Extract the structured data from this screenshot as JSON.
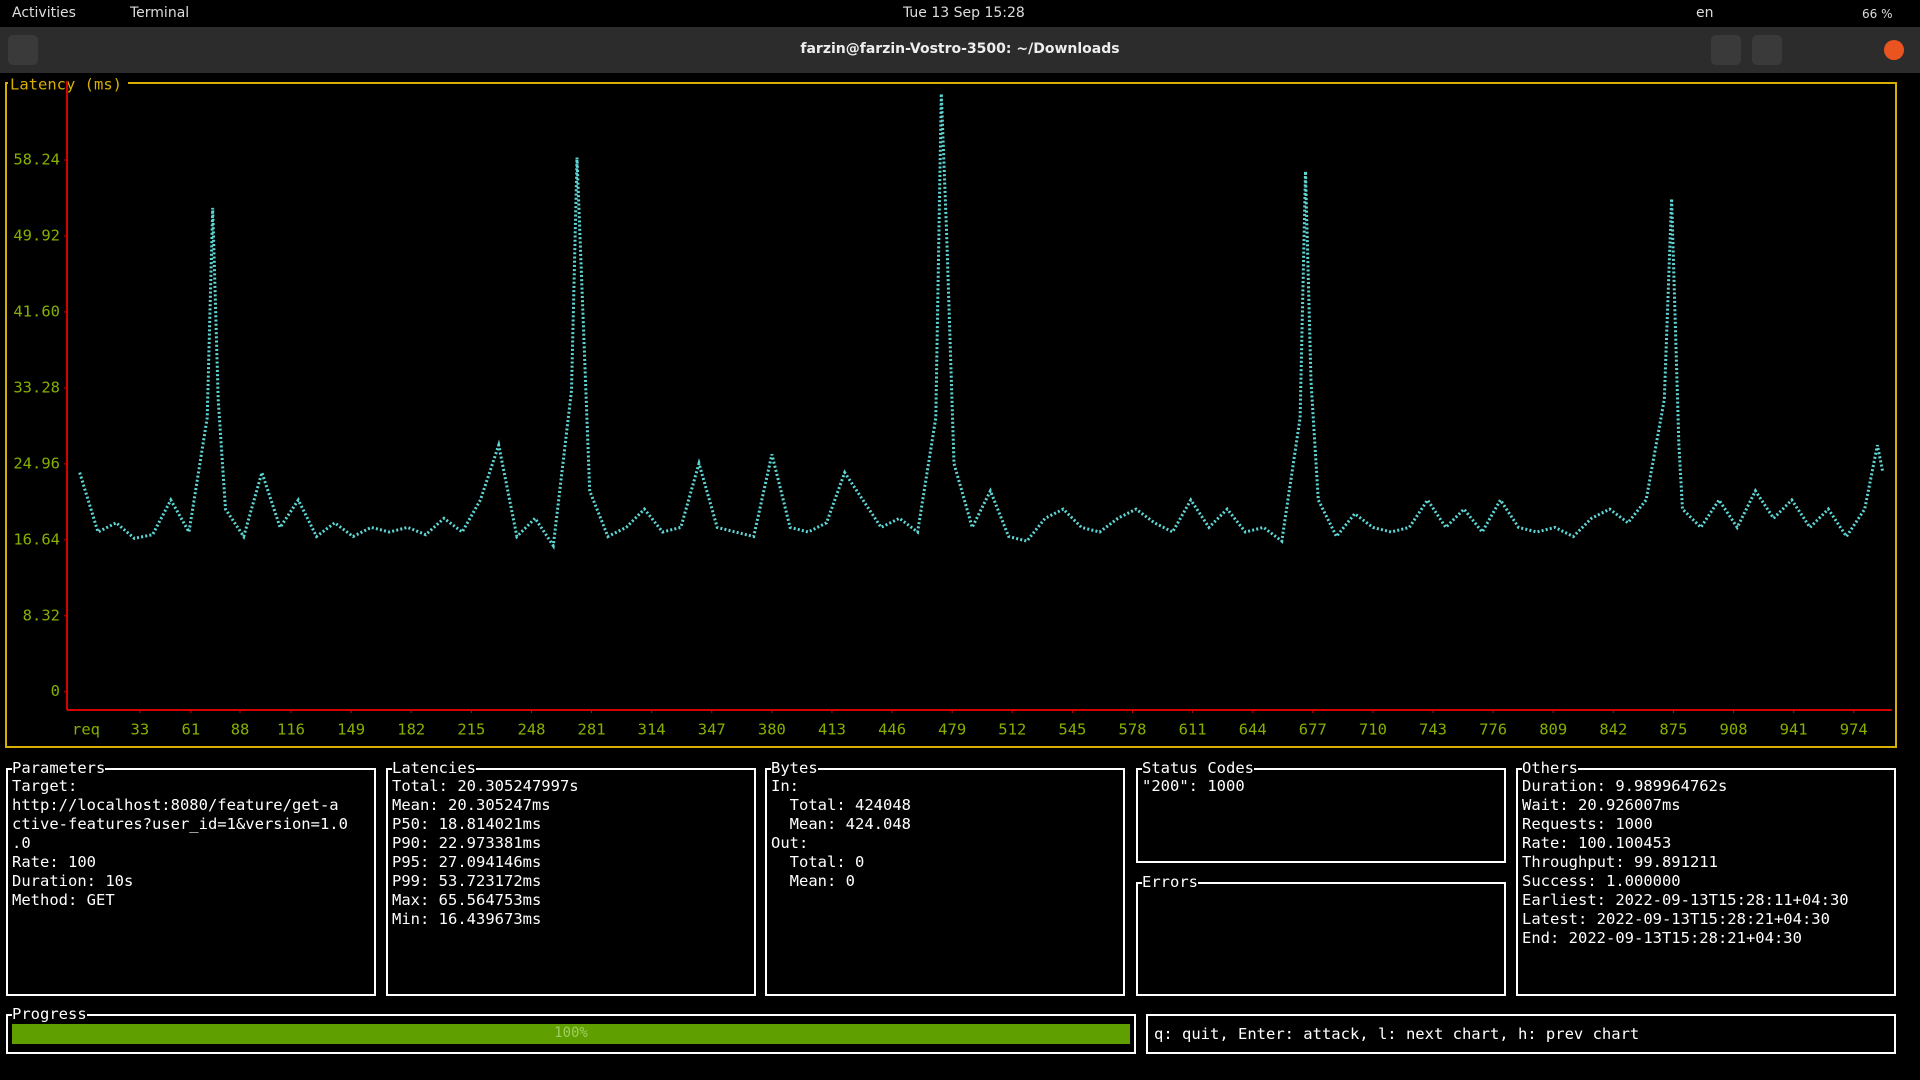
{
  "top_bar": {
    "activities": "Activities",
    "app": "Terminal",
    "clock": "Tue 13 Sep  15:28",
    "language": "en",
    "battery": "66 %"
  },
  "window": {
    "title": "farzin@farzin-Vostro-3500: ~/Downloads"
  },
  "chart_data": {
    "type": "line",
    "title": "Latency (ms)",
    "x_label": "req",
    "color": "#5fd7d7",
    "x": [
      0,
      10,
      20,
      30,
      40,
      50,
      60,
      70,
      73,
      76,
      80,
      90,
      100,
      110,
      120,
      130,
      140,
      150,
      160,
      170,
      180,
      190,
      200,
      210,
      220,
      230,
      240,
      250,
      260,
      270,
      273,
      276,
      280,
      290,
      300,
      310,
      320,
      330,
      340,
      350,
      360,
      370,
      380,
      390,
      400,
      410,
      420,
      430,
      440,
      450,
      460,
      470,
      473,
      476,
      480,
      490,
      500,
      510,
      520,
      530,
      540,
      550,
      560,
      570,
      580,
      590,
      600,
      610,
      620,
      630,
      640,
      650,
      660,
      670,
      673,
      676,
      680,
      690,
      700,
      710,
      720,
      730,
      740,
      750,
      760,
      770,
      780,
      790,
      800,
      810,
      820,
      830,
      840,
      850,
      860,
      870,
      874,
      878,
      880,
      890,
      900,
      910,
      920,
      930,
      940,
      950,
      960,
      970,
      980,
      987,
      990
    ],
    "values": [
      24,
      17.5,
      18.5,
      16.8,
      17.2,
      21,
      17.5,
      30,
      53,
      32,
      20,
      17,
      24,
      18,
      21,
      17,
      18.5,
      17,
      18,
      17.5,
      18,
      17.2,
      19,
      17.5,
      21,
      27,
      17,
      19,
      16,
      33,
      58.5,
      43,
      22,
      17,
      18,
      20,
      17.5,
      18,
      25,
      18,
      17.5,
      17,
      26,
      18,
      17.5,
      18.5,
      24,
      21,
      18,
      19,
      17.5,
      30,
      65.5,
      50,
      25,
      18,
      22,
      17,
      16.5,
      19,
      20,
      18,
      17.5,
      19,
      20,
      18.5,
      17.5,
      21,
      18,
      20,
      17.5,
      18,
      16.5,
      30,
      57,
      34,
      21,
      17,
      19.5,
      18,
      17.5,
      18,
      21,
      18,
      20,
      17.5,
      21,
      18,
      17.5,
      18,
      17,
      19,
      20,
      18.5,
      21,
      32,
      54,
      27,
      20,
      18,
      21,
      18,
      22,
      19,
      21,
      18,
      20,
      17,
      20,
      27,
      24
    ],
    "xlim": [
      -7,
      995
    ],
    "ylim": [
      -2,
      65.8
    ],
    "xticks": [
      33,
      61,
      88,
      116,
      149,
      182,
      215,
      248,
      281,
      314,
      347,
      380,
      413,
      446,
      479,
      512,
      545,
      578,
      611,
      644,
      677,
      710,
      743,
      776,
      809,
      842,
      875,
      908,
      941,
      974
    ],
    "yticks": [
      0,
      8.32,
      16.64,
      24.96,
      33.28,
      {
        "value": 41.6,
        "label": "41.60"
      },
      49.92,
      58.24
    ]
  },
  "panels": [
    {
      "title": "Parameters",
      "lines": [
        "Target:",
        "http://localhost:8080/feature/get-a",
        "ctive-features?user_id=1&version=1.0",
        ".0",
        "Rate: 100",
        "Duration: 10s",
        "Method: GET"
      ]
    },
    {
      "title": "Latencies",
      "lines": [
        "Total: 20.305247997s",
        "Mean: 20.305247ms",
        "P50: 18.814021ms",
        "P90: 22.973381ms",
        "P95: 27.094146ms",
        "P99: 53.723172ms",
        "Max: 65.564753ms",
        "Min: 16.439673ms"
      ]
    },
    {
      "title": "Bytes",
      "lines": [
        "In:",
        "  Total: 424048",
        "  Mean: 424.048",
        "Out:",
        "  Total: 0",
        "  Mean: 0"
      ]
    },
    {
      "title": "Status Codes",
      "lines": [
        "\"200\": 1000"
      ]
    },
    {
      "title": "Errors",
      "lines": []
    },
    {
      "title": "Others",
      "lines": [
        "Duration: 9.989964762s",
        "Wait: 20.926007ms",
        "Requests: 1000",
        "Rate: 100.100453",
        "Throughput: 99.891211",
        "Success: 1.000000",
        "Earliest: 2022-09-13T15:28:11+04:30",
        "Latest: 2022-09-13T15:28:21+04:30",
        "End: 2022-09-13T15:28:21+04:30"
      ]
    }
  ],
  "progress": {
    "title": "Progress",
    "value": 100,
    "label": "100%"
  },
  "help": "q: quit, Enter: attack, l: next chart, h: prev chart"
}
